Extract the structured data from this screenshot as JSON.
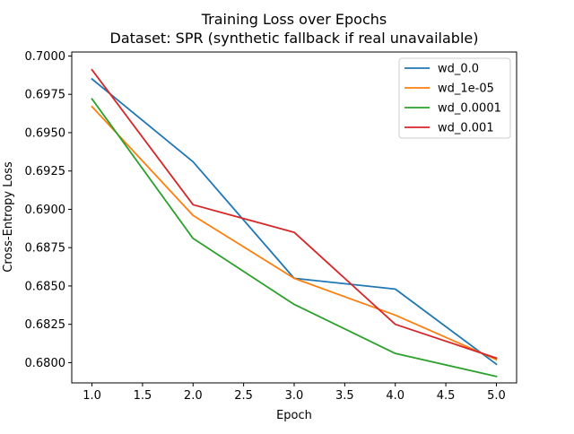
{
  "chart_data": {
    "type": "line",
    "title": "Training Loss over Epochs",
    "subtitle": "Dataset: SPR (synthetic fallback if real unavailable)",
    "xlabel": "Epoch",
    "ylabel": "Cross-Entropy Loss",
    "xlim": [
      0.8,
      5.2
    ],
    "ylim": [
      0.67868,
      0.70026
    ],
    "x_ticks": [
      1.0,
      1.5,
      2.0,
      2.5,
      3.0,
      3.5,
      4.0,
      4.5,
      5.0
    ],
    "x_tick_labels": [
      "1.0",
      "1.5",
      "2.0",
      "2.5",
      "3.0",
      "3.5",
      "4.0",
      "4.5",
      "5.0"
    ],
    "y_ticks": [
      0.68,
      0.6825,
      0.685,
      0.6875,
      0.69,
      0.6925,
      0.695,
      0.6975,
      0.7
    ],
    "y_tick_labels": [
      "0.6800",
      "0.6825",
      "0.6850",
      "0.6875",
      "0.6900",
      "0.6925",
      "0.6950",
      "0.6975",
      "0.7000"
    ],
    "grid": false,
    "legend_position": "top-right",
    "x": [
      1,
      2,
      3,
      4,
      5
    ],
    "series": [
      {
        "name": "wd_0.0",
        "color": "#1f77b4",
        "values": [
          0.6985,
          0.6931,
          0.6855,
          0.6848,
          0.6799
        ]
      },
      {
        "name": "wd_1e-05",
        "color": "#ff7f0e",
        "values": [
          0.6967,
          0.6896,
          0.6855,
          0.6831,
          0.6802
        ]
      },
      {
        "name": "wd_0.0001",
        "color": "#2ca02c",
        "values": [
          0.6972,
          0.6881,
          0.6838,
          0.6806,
          0.6791
        ]
      },
      {
        "name": "wd_0.001",
        "color": "#d62728",
        "values": [
          0.6991,
          0.6903,
          0.6885,
          0.6825,
          0.6803
        ]
      }
    ]
  }
}
